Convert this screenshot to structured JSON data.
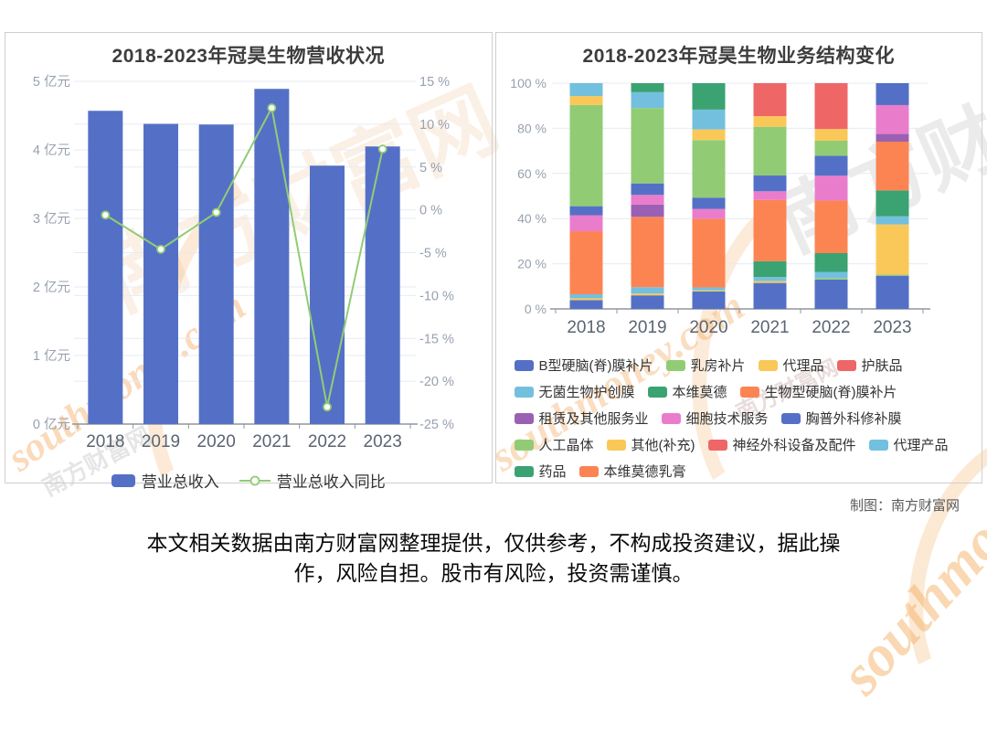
{
  "credit": "制图：南方财富网",
  "disclaimer": {
    "line1": "本文相关数据由南方财富网整理提供，仅供参考，不构成投资建议，据此操",
    "line2": "作，风险自担。股市有风险，投资需谨慎。"
  },
  "watermark": {
    "site_cn": "南方财富网",
    "site_en": "southmoney.com"
  },
  "chart_data": [
    {
      "id": "revenue",
      "type": "bar",
      "title": "2018-2023年冠昊生物营收状况",
      "categories": [
        "2018",
        "2019",
        "2020",
        "2021",
        "2022",
        "2023"
      ],
      "series": [
        {
          "name": "营业总收入",
          "type": "bar",
          "unit": "亿元",
          "color": "#5470c6",
          "values": [
            4.57,
            4.38,
            4.37,
            4.89,
            3.77,
            4.05
          ]
        },
        {
          "name": "营业总收入同比",
          "type": "line",
          "unit": "%",
          "color": "#91cc75",
          "values": [
            -0.6,
            -4.6,
            -0.3,
            11.9,
            -23.0,
            7.1
          ]
        }
      ],
      "y_left": {
        "labels": [
          "5 亿元",
          "4 亿元",
          "3 亿元",
          "2 亿元",
          "1 亿元",
          "0 亿元"
        ],
        "min": 0,
        "max": 5
      },
      "y_right": {
        "labels": [
          "15 %",
          "10 %",
          "5 %",
          "0 %",
          "-5 %",
          "-10 %",
          "-15 %",
          "-20 %",
          "-25 %"
        ],
        "min": -25,
        "max": 15
      },
      "grid": true,
      "legend_position": "bottom"
    },
    {
      "id": "structure",
      "type": "bar",
      "stacked": true,
      "title": "2018-2023年冠昊生物业务结构变化",
      "categories": [
        "2018",
        "2019",
        "2020",
        "2021",
        "2022",
        "2023"
      ],
      "unit": "%",
      "y_axis": {
        "labels": [
          "100 %",
          "80 %",
          "60 %",
          "40 %",
          "20 %",
          "0 %"
        ],
        "min": 0,
        "max": 100
      },
      "series": [
        {
          "name": "B型硬脑(脊)膜补片",
          "color": "#5470c6",
          "values": [
            3.9,
            6.0,
            7.7,
            11.5,
            13.0,
            14.7
          ]
        },
        {
          "name": "乳房补片",
          "color": "#91cc75",
          "values": [
            0,
            0,
            0,
            0,
            0.7,
            0.5
          ]
        },
        {
          "name": "代理品",
          "color": "#fac858",
          "values": [
            0.8,
            0.8,
            0.5,
            0.8,
            0,
            22.2
          ]
        },
        {
          "name": "护肤品",
          "color": "#ee6666",
          "values": [
            0,
            0,
            0,
            0,
            0,
            0
          ]
        },
        {
          "name": "无菌生物护创膜",
          "color": "#73c0de",
          "values": [
            1.8,
            2.8,
            1.3,
            1.8,
            2.7,
            3.6
          ]
        },
        {
          "name": "本维莫德",
          "color": "#3ba272",
          "values": [
            0,
            0,
            0,
            7.0,
            8.3,
            11.5
          ]
        },
        {
          "name": "生物型硬脑(脊)膜补片",
          "color": "#fc8452",
          "values": [
            27.9,
            31.2,
            30.5,
            27.2,
            23.3,
            21.6
          ]
        },
        {
          "name": "租赁及其他服务业",
          "color": "#9a60b4",
          "values": [
            0,
            5.4,
            0,
            0,
            0,
            3.4
          ]
        },
        {
          "name": "细胞技术服务",
          "color": "#ea7ccc",
          "values": [
            7.1,
            4.3,
            4.3,
            3.8,
            11.0,
            12.8
          ]
        },
        {
          "name": "胸普外科修补膜",
          "color": "#5470c6",
          "values": [
            4.0,
            5.1,
            5.0,
            7.0,
            8.8,
            9.7
          ]
        },
        {
          "name": "人工晶体",
          "color": "#91cc75",
          "values": [
            44.8,
            33.4,
            25.5,
            21.6,
            6.7,
            0
          ]
        },
        {
          "name": "其他(补充)",
          "color": "#fac858",
          "values": [
            4.0,
            0,
            4.7,
            4.7,
            5.2,
            0
          ]
        },
        {
          "name": "神经外科设备及配件",
          "color": "#ee6666",
          "values": [
            0,
            0,
            0,
            14.6,
            20.3,
            0
          ]
        },
        {
          "name": "代理产品",
          "color": "#73c0de",
          "values": [
            5.7,
            7.0,
            8.8,
            0,
            0,
            0
          ]
        },
        {
          "name": "药品",
          "color": "#3ba272",
          "values": [
            0,
            4.0,
            11.7,
            0,
            0,
            0
          ]
        },
        {
          "name": "本维莫德乳膏",
          "color": "#fc8452",
          "values": [
            0,
            0,
            0,
            0,
            0,
            0
          ]
        }
      ],
      "legend_rows": [
        [
          0,
          1,
          2,
          3
        ],
        [
          4,
          5,
          6
        ],
        [
          7,
          8,
          9
        ],
        [
          10,
          11,
          12,
          13
        ],
        [
          14,
          15
        ]
      ],
      "legend_position": "bottom"
    }
  ]
}
